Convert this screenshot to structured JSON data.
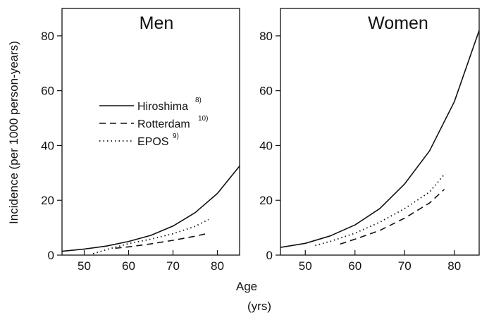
{
  "chart_data": [
    {
      "type": "line",
      "title": "Men",
      "xlabel": "Age",
      "xlabel_unit": "(yrs)",
      "ylabel": "Incidence (per 1000 person-years)",
      "xlim": [
        45,
        85
      ],
      "ylim": [
        0,
        90
      ],
      "xticks": [
        50,
        60,
        70,
        80
      ],
      "yticks": [
        0,
        20,
        40,
        60,
        80
      ],
      "xtick_labels": [
        "50",
        "60",
        "70",
        "80"
      ],
      "ytick_labels": [
        "0",
        "20",
        "40",
        "60",
        "80"
      ],
      "legend": {
        "position": "center-left"
      },
      "series": [
        {
          "name": "Hiroshima",
          "ref": "8)",
          "line_style": "solid",
          "x": [
            45,
            50,
            55,
            60,
            65,
            70,
            75,
            80,
            85
          ],
          "y": [
            1.4,
            2.2,
            3.3,
            5.0,
            7.2,
            10.6,
            15.5,
            22.5,
            32.5
          ]
        },
        {
          "name": "Rotterdam",
          "ref": "10)",
          "line_style": "dashed",
          "x": [
            57,
            60,
            65,
            70,
            75,
            78
          ],
          "y": [
            2.5,
            3.0,
            4.1,
            5.4,
            6.9,
            8.0
          ]
        },
        {
          "name": "EPOS",
          "ref": "9)",
          "line_style": "dotted",
          "x": [
            52,
            55,
            60,
            65,
            70,
            75,
            78
          ],
          "y": [
            0.5,
            2.0,
            4.2,
            5.8,
            7.8,
            10.5,
            13.0
          ]
        }
      ]
    },
    {
      "type": "line",
      "title": "Women",
      "xlim": [
        45,
        85
      ],
      "ylim": [
        0,
        90
      ],
      "xticks": [
        50,
        60,
        70,
        80
      ],
      "yticks": [
        0,
        20,
        40,
        60,
        80
      ],
      "xtick_labels": [
        "50",
        "60",
        "70",
        "80"
      ],
      "ytick_labels": [
        "0",
        "20",
        "40",
        "60",
        "80"
      ],
      "series": [
        {
          "name": "Hiroshima",
          "line_style": "solid",
          "x": [
            45,
            50,
            55,
            60,
            65,
            70,
            75,
            80,
            85
          ],
          "y": [
            2.8,
            4.3,
            7.0,
            11.0,
            17.0,
            26.0,
            38.0,
            56.0,
            82.0
          ]
        },
        {
          "name": "Rotterdam",
          "line_style": "dashed",
          "x": [
            57,
            60,
            65,
            70,
            75,
            78
          ],
          "y": [
            4.0,
            5.8,
            9.0,
            13.5,
            19.0,
            24.0
          ]
        },
        {
          "name": "EPOS",
          "line_style": "dotted",
          "x": [
            52,
            55,
            60,
            65,
            70,
            75,
            78
          ],
          "y": [
            3.5,
            5.0,
            8.0,
            12.0,
            17.0,
            23.0,
            29.5
          ]
        }
      ]
    }
  ],
  "colors": {
    "line": "#111111",
    "background": "#ffffff"
  }
}
